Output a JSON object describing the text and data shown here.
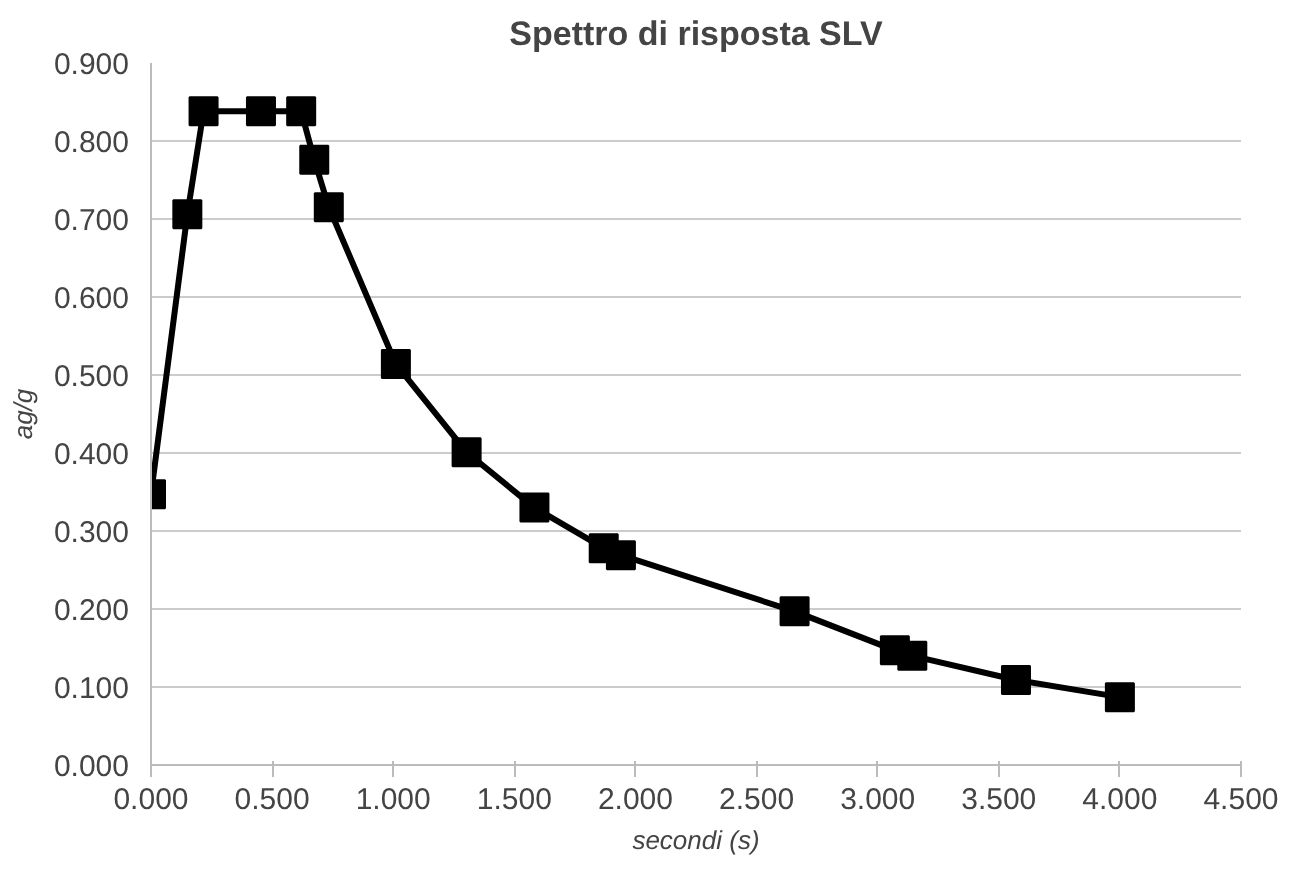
{
  "chart_data": {
    "type": "line",
    "title": "Spettro di risposta SLV",
    "xlabel": "secondi (s)",
    "ylabel": "ag/g",
    "x": [
      0,
      0.15,
      0.217,
      0.454,
      0.62,
      0.674,
      0.734,
      1.011,
      1.303,
      1.583,
      1.869,
      1.94,
      2.657,
      3.071,
      3.143,
      3.571,
      4.0
    ],
    "series": [
      {
        "color": "#000000",
        "values": [
          0.347,
          0.706,
          0.838,
          0.838,
          0.838,
          0.776,
          0.715,
          0.514,
          0.401,
          0.33,
          0.278,
          0.269,
          0.197,
          0.147,
          0.14,
          0.109,
          0.087
        ]
      }
    ],
    "xlim": [
      0,
      4.5
    ],
    "xticks": [
      {
        "value": 0,
        "label": "0.000"
      },
      {
        "value": 0.5,
        "label": "0.500"
      },
      {
        "value": 1,
        "label": "1.000"
      },
      {
        "value": 1.5,
        "label": "1.500"
      },
      {
        "value": 2,
        "label": "2.000"
      },
      {
        "value": 2.5,
        "label": "2.500"
      },
      {
        "value": 3,
        "label": "3.000"
      },
      {
        "value": 3.5,
        "label": "3.500"
      },
      {
        "value": 4,
        "label": "4.000"
      },
      {
        "value": 4.5,
        "label": "4.500"
      }
    ],
    "ylim": [
      0,
      0.9
    ],
    "yticks": [
      {
        "value": 0,
        "label": "0.000"
      },
      {
        "value": 0.1,
        "label": "0.100"
      },
      {
        "value": 0.2,
        "label": "0.200"
      },
      {
        "value": 0.3,
        "label": "0.300"
      },
      {
        "value": 0.4,
        "label": "0.400"
      },
      {
        "value": 0.5,
        "label": "0.500"
      },
      {
        "value": 0.6,
        "label": "0.600"
      },
      {
        "value": 0.7,
        "label": "0.700"
      },
      {
        "value": 0.8,
        "label": "0.800"
      },
      {
        "value": 0.9,
        "label": "0.900"
      }
    ],
    "grid": "y",
    "marker": "square",
    "line_style": "solid"
  }
}
